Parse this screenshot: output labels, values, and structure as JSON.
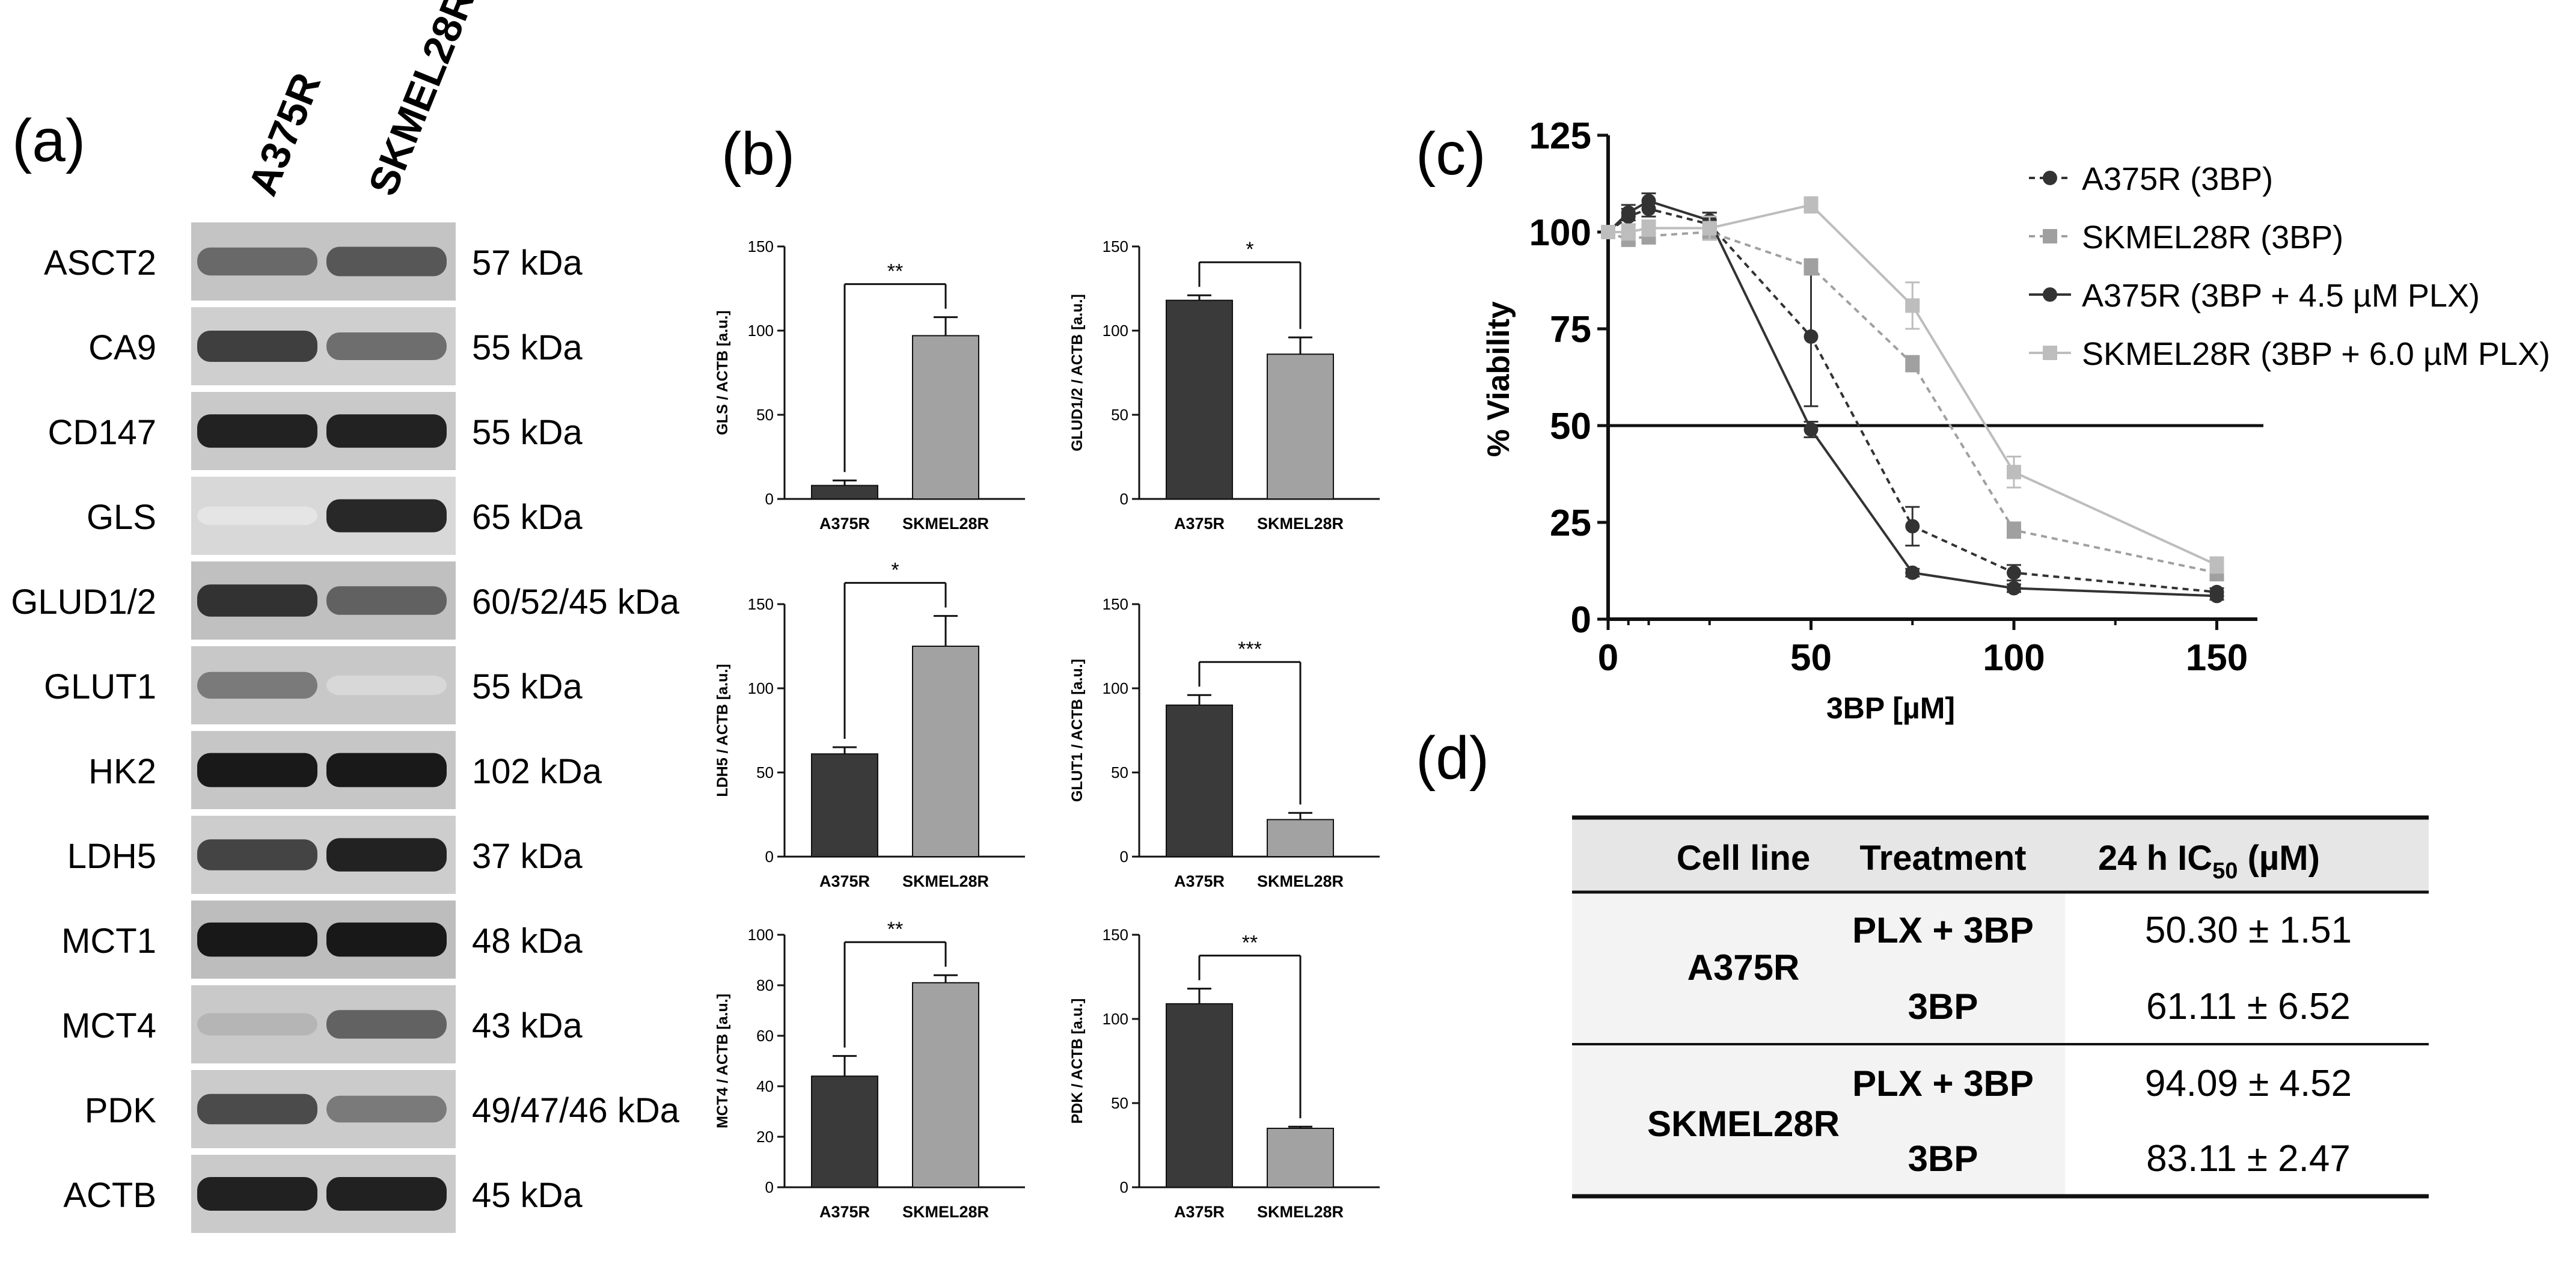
{
  "panel_labels": {
    "a": "(a)",
    "b": "(b)",
    "c": "(c)",
    "d": "(d)"
  },
  "western_blot": {
    "lanes": [
      "A375R",
      "SKMEL28R"
    ],
    "rows": [
      {
        "protein": "ASCT2",
        "size": "57 kDa",
        "intensity": [
          0.62,
          0.7
        ],
        "bg": "#c4c4c4"
      },
      {
        "protein": "CA9",
        "size": "55 kDa",
        "intensity": [
          0.8,
          0.6
        ],
        "bg": "#cfcfcf"
      },
      {
        "protein": "CD147",
        "size": "55 kDa",
        "intensity": [
          0.92,
          0.92
        ],
        "bg": "#c9c9c9"
      },
      {
        "protein": "GLS",
        "size": "65 kDa",
        "intensity": [
          0.1,
          0.9
        ],
        "bg": "#d8d8d8"
      },
      {
        "protein": "GLUD1/2",
        "size": "60/52/45 kDa",
        "intensity": [
          0.85,
          0.65
        ],
        "bg": "#c0c0c0"
      },
      {
        "protein": "GLUT1",
        "size": "55 kDa",
        "intensity": [
          0.55,
          0.15
        ],
        "bg": "#c8c8c8"
      },
      {
        "protein": "HK2",
        "size": "102 kDa",
        "intensity": [
          0.96,
          0.96
        ],
        "bg": "#c6c6c6"
      },
      {
        "protein": "LDH5",
        "size": "37 kDa",
        "intensity": [
          0.78,
          0.92
        ],
        "bg": "#cdcdcd"
      },
      {
        "protein": "MCT1",
        "size": "48 kDa",
        "intensity": [
          0.96,
          0.96
        ],
        "bg": "#bdbdbd"
      },
      {
        "protein": "MCT4",
        "size": "43 kDa",
        "intensity": [
          0.3,
          0.65
        ],
        "bg": "#c9c9c9"
      },
      {
        "protein": "PDK",
        "size": "49/47/46 kDa",
        "intensity": [
          0.75,
          0.55
        ],
        "bg": "#cbcbcb"
      },
      {
        "protein": "ACTB",
        "size": "45 kDa",
        "intensity": [
          0.93,
          0.93
        ],
        "bg": "#cacaca"
      }
    ]
  },
  "chart_data": [
    {
      "type": "bar",
      "panel": "b",
      "ylabel": "GLS / ACTB [a.u.]",
      "categories": [
        "A375R",
        "SKMEL28R"
      ],
      "values": [
        8,
        97
      ],
      "errors": [
        3,
        11
      ],
      "ylim": [
        0,
        150
      ],
      "yticks": [
        "0",
        "50",
        "100",
        "150"
      ],
      "significance": "**"
    },
    {
      "type": "bar",
      "panel": "b",
      "ylabel": "GLUD1/2 / ACTB [a.u.]",
      "categories": [
        "A375R",
        "SKMEL28R"
      ],
      "values": [
        118,
        86
      ],
      "errors": [
        3,
        10
      ],
      "ylim": [
        0,
        150
      ],
      "yticks": [
        "0",
        "50",
        "100",
        "150"
      ],
      "significance": "*"
    },
    {
      "type": "bar",
      "panel": "b",
      "ylabel": "LDH5 / ACTB [a.u.]",
      "categories": [
        "A375R",
        "SKMEL28R"
      ],
      "values": [
        61,
        125
      ],
      "errors": [
        4,
        18
      ],
      "ylim": [
        0,
        150
      ],
      "yticks": [
        "0",
        "50",
        "100",
        "150"
      ],
      "significance": "*"
    },
    {
      "type": "bar",
      "panel": "b",
      "ylabel": "GLUT1 / ACTB [a.u.]",
      "categories": [
        "A375R",
        "SKMEL28R"
      ],
      "values": [
        90,
        22
      ],
      "errors": [
        6,
        4
      ],
      "ylim": [
        0,
        150
      ],
      "yticks": [
        "0",
        "50",
        "100",
        "150"
      ],
      "significance": "***"
    },
    {
      "type": "bar",
      "panel": "b",
      "ylabel": "MCT4 / ACTB [a.u.]",
      "categories": [
        "A375R",
        "SKMEL28R"
      ],
      "values": [
        44,
        81
      ],
      "errors": [
        8,
        3
      ],
      "ylim": [
        0,
        100
      ],
      "yticks": [
        "0",
        "20",
        "40",
        "60",
        "80",
        "100"
      ],
      "significance": "**"
    },
    {
      "type": "bar",
      "panel": "b",
      "ylabel": "PDK / ACTB [a.u.]",
      "categories": [
        "A375R",
        "SKMEL28R"
      ],
      "values": [
        109,
        35
      ],
      "errors": [
        9,
        1
      ],
      "ylim": [
        0,
        150
      ],
      "yticks": [
        "0",
        "50",
        "100",
        "150"
      ],
      "significance": "**"
    },
    {
      "type": "line",
      "panel": "c",
      "title": "",
      "xlabel": "3BP [µM]",
      "ylabel": "% Viability",
      "xlim": [
        0,
        160
      ],
      "ylim": [
        0,
        125
      ],
      "xticks": [
        "0",
        "50",
        "100",
        "150"
      ],
      "yticks": [
        "0",
        "25",
        "50",
        "75",
        "100",
        "125"
      ],
      "reference_line": 50,
      "series": [
        {
          "name": "A375R (3BP)",
          "color": "#333333",
          "dashed": true,
          "x": [
            0,
            5,
            10,
            25,
            50,
            75,
            100,
            150
          ],
          "y": [
            100,
            104,
            106,
            102,
            73,
            24,
            12,
            7
          ],
          "err": [
            0,
            2,
            2,
            3,
            18,
            5,
            2,
            1
          ]
        },
        {
          "name": "SKMEL28R (3BP)",
          "color": "#a0a0a0",
          "dashed": true,
          "x": [
            0,
            5,
            10,
            25,
            50,
            75,
            100,
            150
          ],
          "y": [
            100,
            98,
            99,
            100,
            91,
            66,
            23,
            12
          ],
          "err": [
            0,
            1,
            2,
            2,
            2,
            2,
            2,
            2
          ]
        },
        {
          "name": "A375R (3BP + 4.5 µM PLX)",
          "color": "#333333",
          "dashed": false,
          "x": [
            0,
            5,
            10,
            25,
            50,
            75,
            100,
            150
          ],
          "y": [
            100,
            105,
            108,
            103,
            49,
            12,
            8,
            6
          ],
          "err": [
            0,
            2,
            2,
            2,
            2,
            1,
            1,
            1
          ]
        },
        {
          "name": "SKMEL28R (3BP + 6.0 µM PLX)",
          "color": "#bdbdbd",
          "dashed": false,
          "x": [
            0,
            5,
            10,
            25,
            50,
            75,
            100,
            150
          ],
          "y": [
            100,
            100,
            101,
            101,
            107,
            81,
            38,
            14
          ],
          "err": [
            0,
            2,
            2,
            3,
            2,
            6,
            4,
            2
          ]
        }
      ]
    }
  ],
  "ic50_table": {
    "headers": {
      "cell_line": "Cell line",
      "treatment": "Treatment",
      "ic50_prefix": "24 h IC",
      "ic50_sub": "50",
      "ic50_suffix": " (µM)"
    },
    "groups": [
      {
        "cell_line": "A375R",
        "rows": [
          {
            "treatment": "PLX + 3BP",
            "value": "50.30 ± 1.51"
          },
          {
            "treatment": "3BP",
            "value": "61.11 ± 6.52"
          }
        ]
      },
      {
        "cell_line": "SKMEL28R",
        "rows": [
          {
            "treatment": "PLX + 3BP",
            "value": "94.09 ± 4.52"
          },
          {
            "treatment": "3BP",
            "value": "83.11 ± 2.47"
          }
        ]
      }
    ]
  }
}
